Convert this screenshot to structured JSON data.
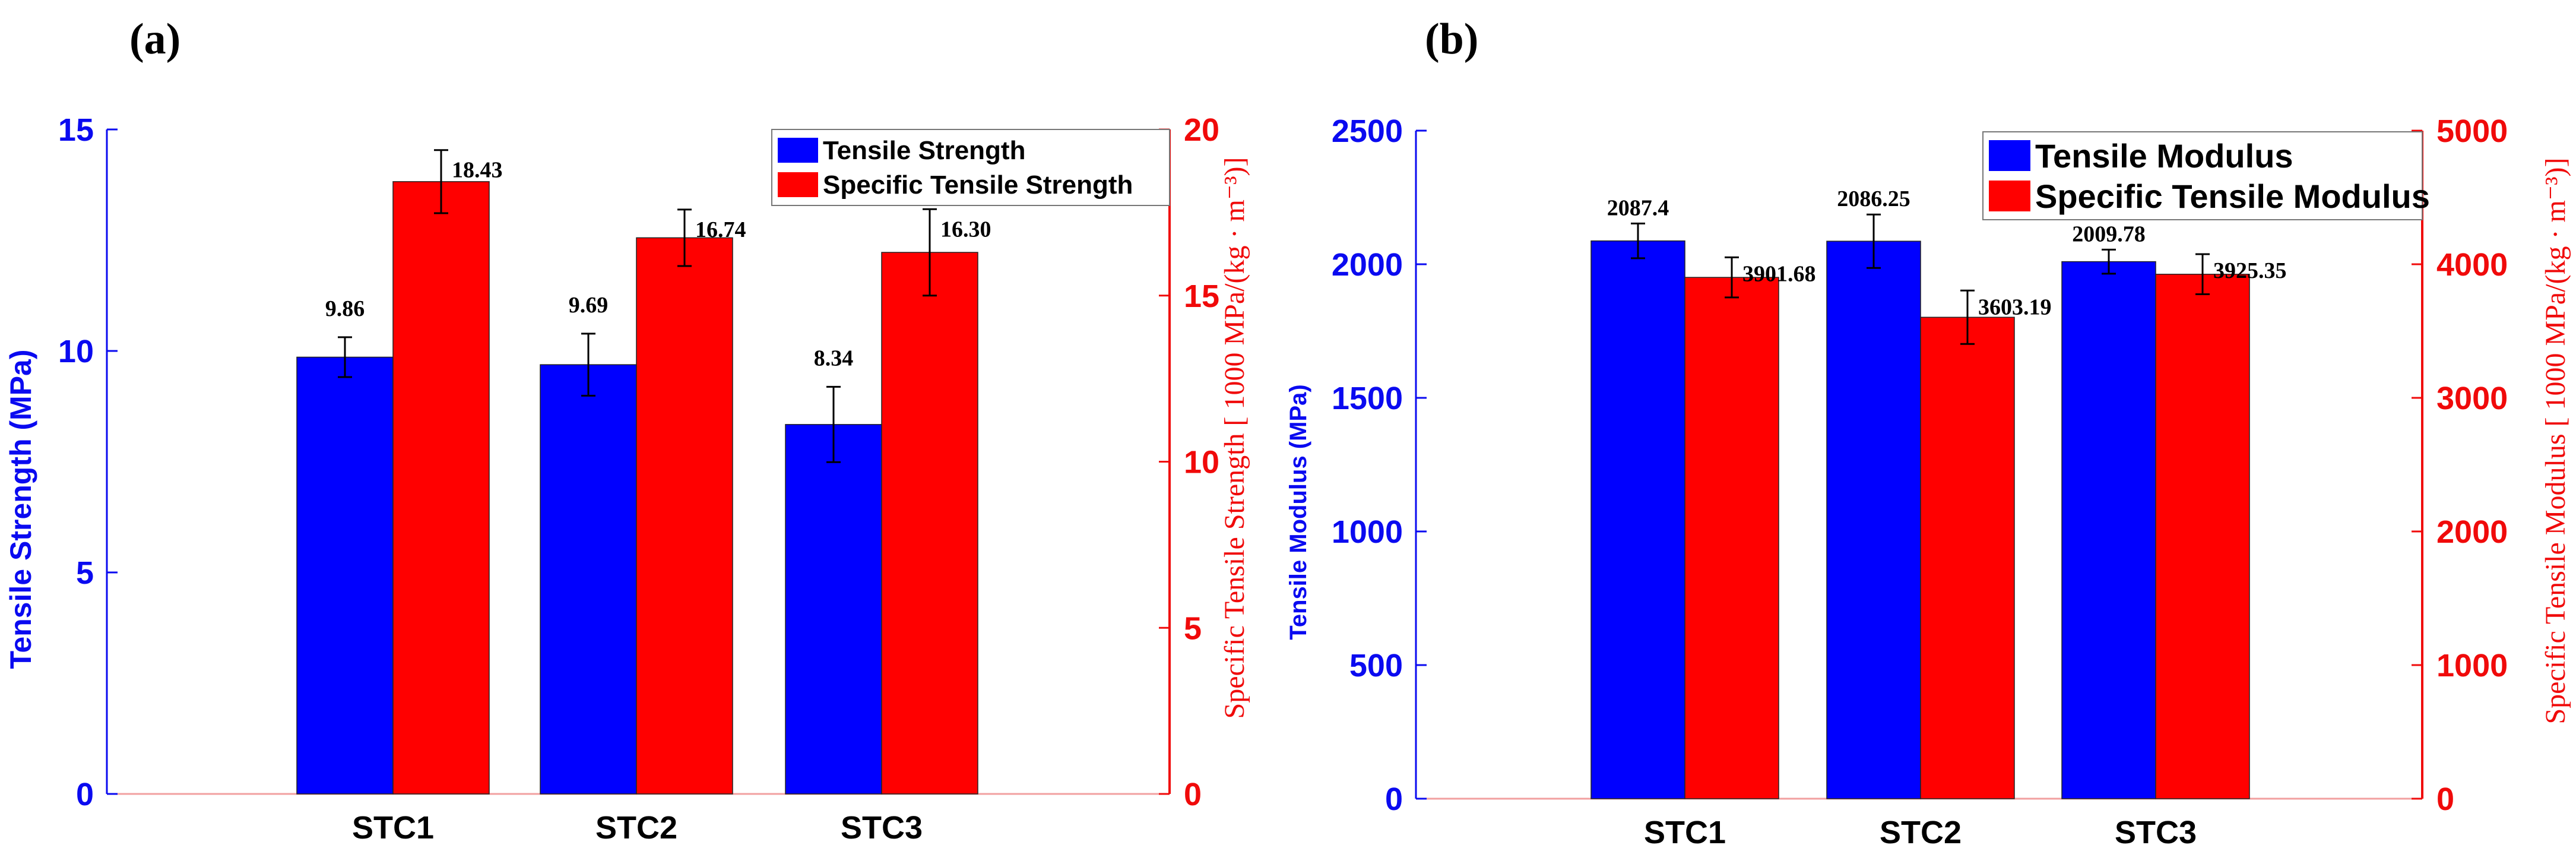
{
  "colors": {
    "left_axis": "#0a0af0",
    "right_axis": "#f00a0a",
    "bar_primary": "#0000ff",
    "bar_secondary": "#ff0000",
    "text": "#000000",
    "axis_line": "#f2a0a0"
  },
  "chart_data": [
    {
      "type": "bar",
      "panel_label": "(a)",
      "categories": [
        "STC1",
        "STC2",
        "STC3"
      ],
      "series": [
        {
          "name": "Tensile Strength",
          "axis": "left",
          "values": [
            9.86,
            9.69,
            8.34
          ],
          "error": [
            0.45,
            0.7,
            0.85
          ],
          "labels": [
            "9.86",
            "9.69",
            "8.34"
          ]
        },
        {
          "name": "Specific Tensile Strength",
          "axis": "right",
          "values": [
            18.43,
            16.74,
            16.3
          ],
          "error": [
            0.95,
            0.85,
            1.3
          ],
          "labels": [
            "18.43",
            "16.74",
            "16.30"
          ]
        }
      ],
      "ylabel_left": "Tensile Strength (MPa)",
      "ylabel_right": "Specific Tensile Strength [ 1000 MPa/(kg · m⁻³)]",
      "ylim_left": [
        0,
        15
      ],
      "ylim_right": [
        0,
        20
      ],
      "yticks_left": [
        "0",
        "5",
        "10",
        "15"
      ],
      "yticks_right": [
        "0",
        "5",
        "10",
        "15",
        "20"
      ],
      "legend_position": "top-right",
      "grid": false
    },
    {
      "type": "bar",
      "panel_label": "(b)",
      "categories": [
        "STC1",
        "STC2",
        "STC3"
      ],
      "series": [
        {
          "name": "Tensile Modulus",
          "axis": "left",
          "values": [
            2087.4,
            2086.25,
            2009.78
          ],
          "error": [
            65,
            100,
            45
          ],
          "labels": [
            "2087.4",
            "2086.25",
            "2009.78"
          ]
        },
        {
          "name": "Specific Tensile Modulus",
          "axis": "right",
          "values": [
            3901.68,
            3603.19,
            3925.35
          ],
          "error": [
            150,
            200,
            150
          ],
          "labels": [
            "3901.68",
            "3603.19",
            "3925.35"
          ]
        }
      ],
      "ylabel_left": "Tensile Modulus (MPa)",
      "ylabel_right": "Specific Tensile Modulus [ 1000 MPa/(kg · m⁻³)]",
      "ylim_left": [
        0,
        2500
      ],
      "ylim_right": [
        0,
        5000
      ],
      "yticks_left": [
        "0",
        "500",
        "1000",
        "1500",
        "2000",
        "2500"
      ],
      "yticks_right": [
        "0",
        "1000",
        "2000",
        "3000",
        "4000",
        "5000"
      ],
      "legend_position": "top-right",
      "grid": false
    }
  ]
}
